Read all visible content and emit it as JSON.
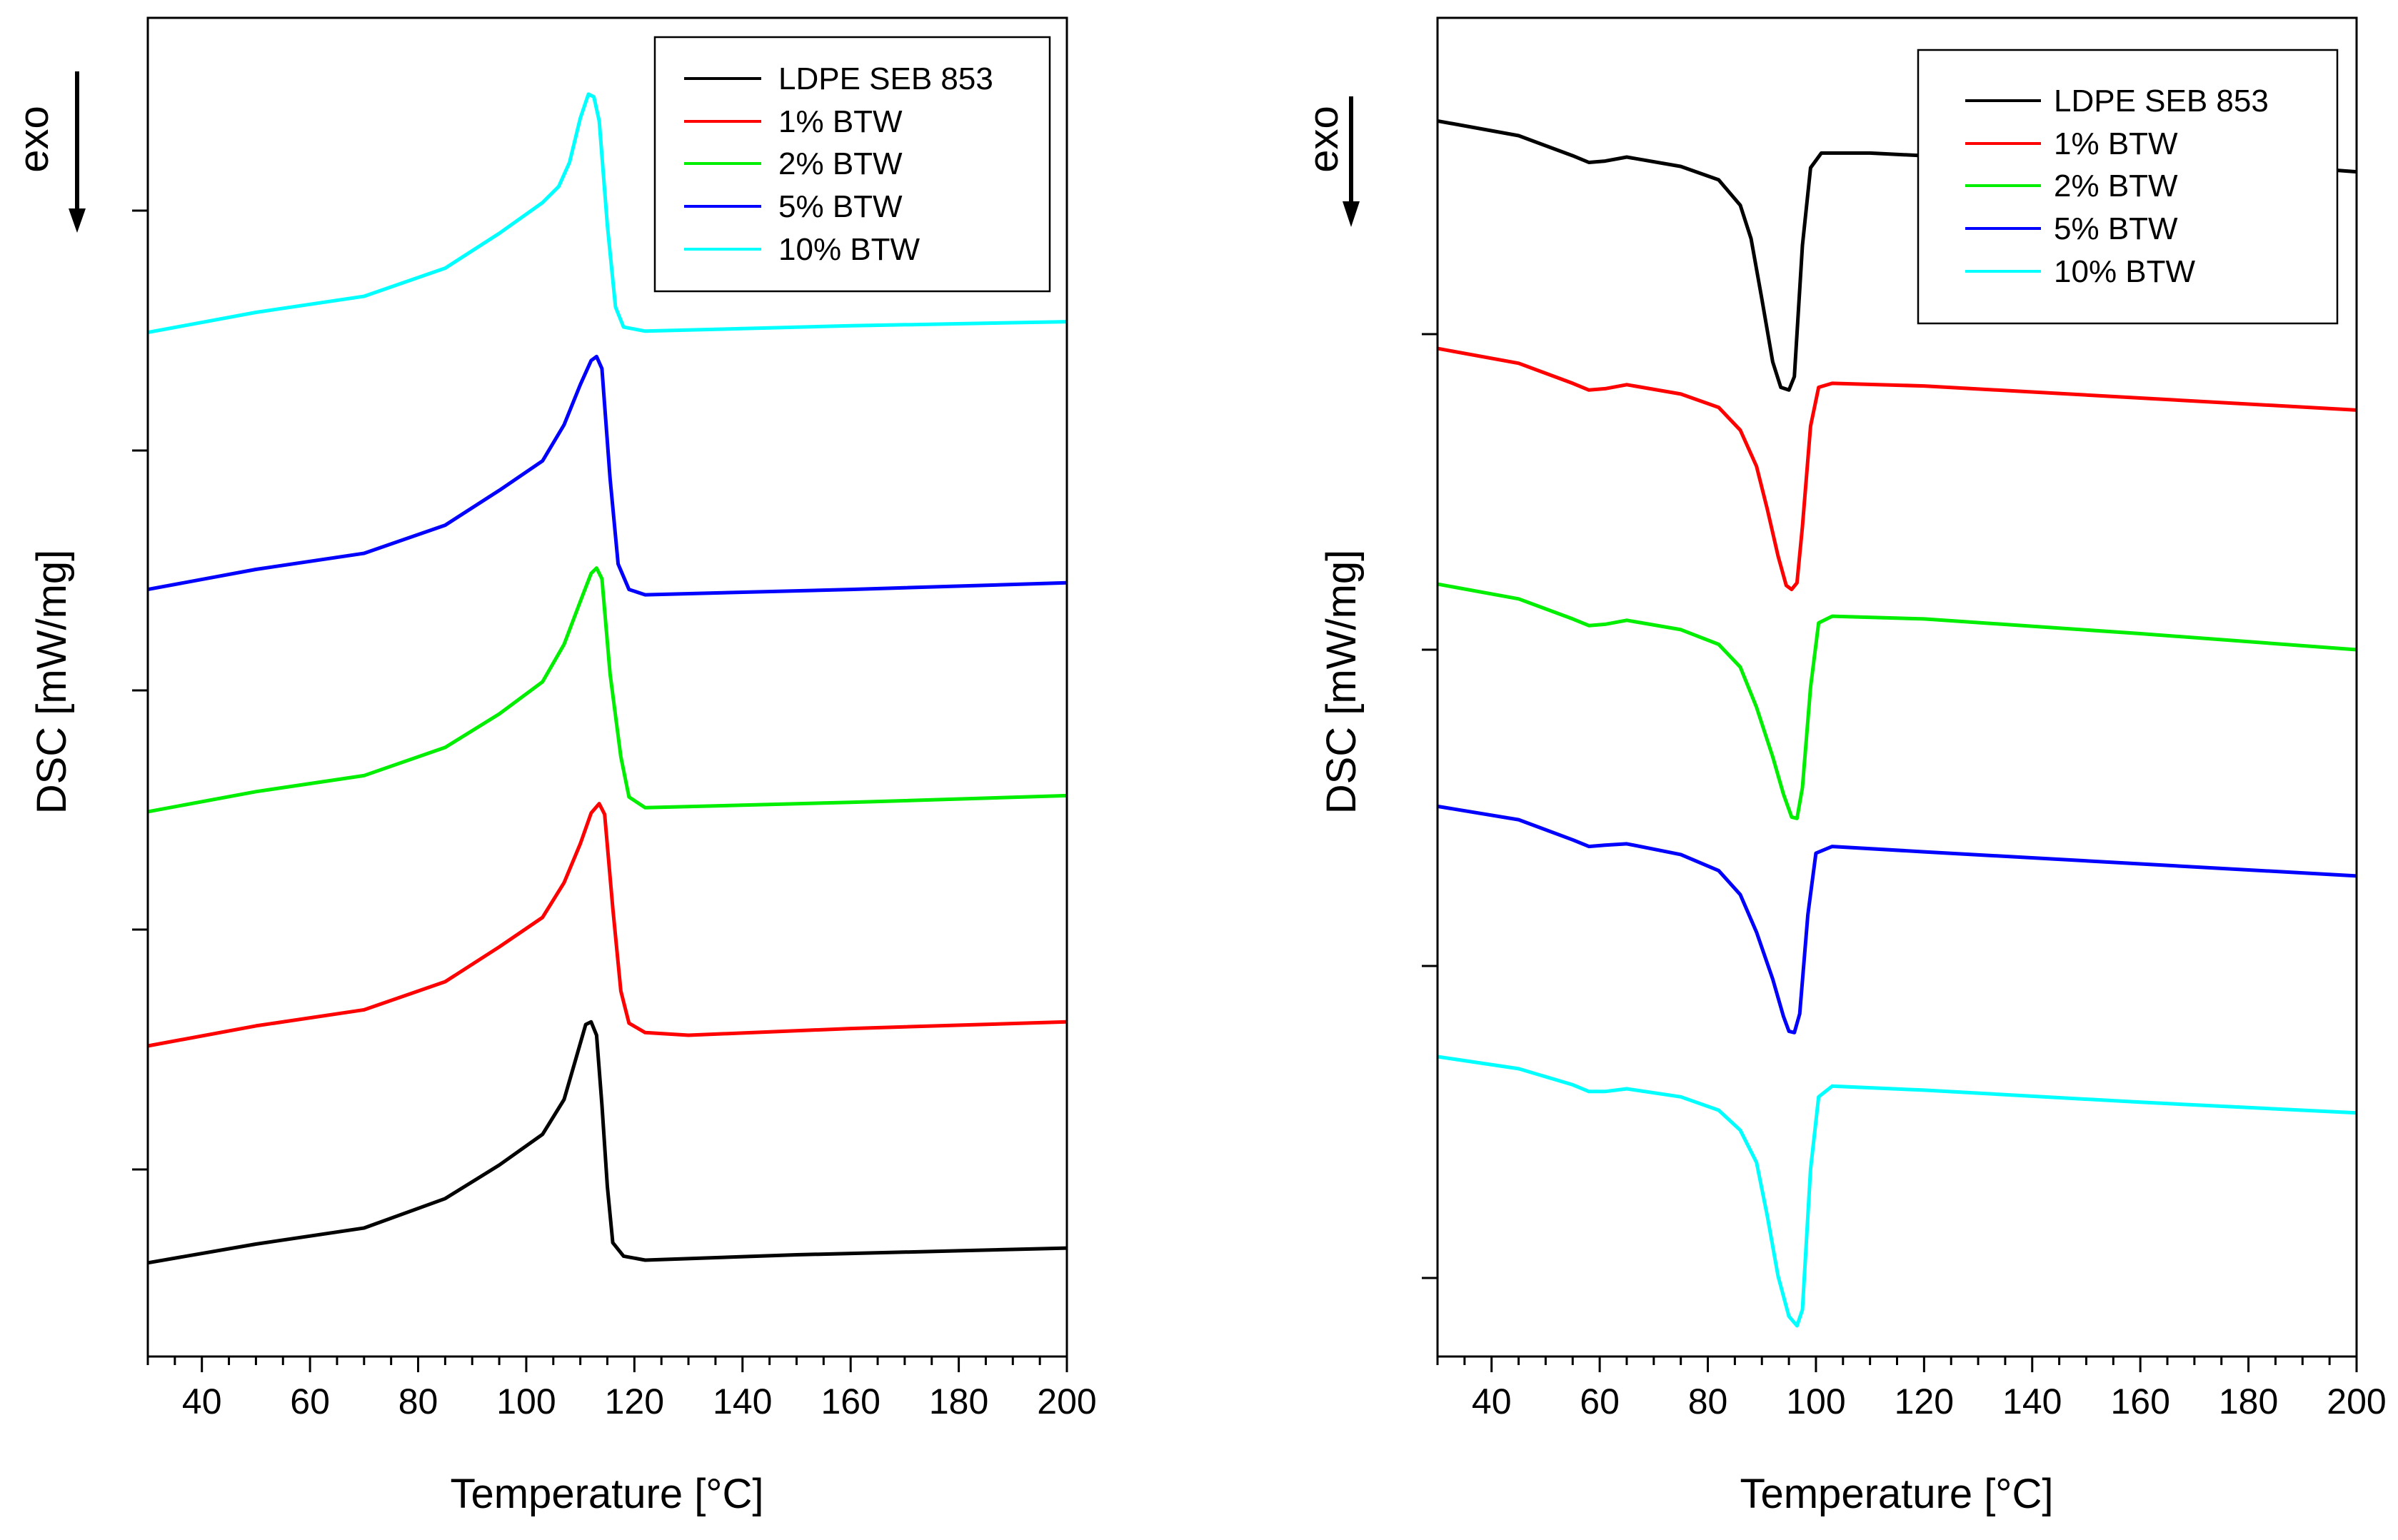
{
  "chart_data": [
    {
      "type": "line",
      "panel": "left (cooling)",
      "xlabel": "Temperature [°C]",
      "ylabel": "DSC [mW/mg]",
      "y_direction_label": "exo",
      "xlim": [
        30,
        200
      ],
      "x_tick_labels": [
        "40",
        "60",
        "80",
        "100",
        "120",
        "140",
        "160",
        "180",
        "200"
      ],
      "yticks_count": 5,
      "legend_position": "top-right",
      "ylim": [
        0,
        100
      ],
      "legend": [
        "LDPE SEB 853",
        "1% BTW",
        "2% BTW",
        "5% BTW",
        "10% BTW"
      ],
      "series": [
        {
          "name": "LDPE SEB 853",
          "color": "#000000",
          "points": [
            [
              30,
              7
            ],
            [
              50,
              8.4
            ],
            [
              70,
              9.6
            ],
            [
              85,
              11.8
            ],
            [
              95,
              14.3
            ],
            [
              103,
              16.6
            ],
            [
              107,
              19.2
            ],
            [
              109,
              22
            ],
            [
              111,
              24.8
            ],
            [
              112,
              25
            ],
            [
              113,
              24
            ],
            [
              114,
              18.8
            ],
            [
              115,
              12.7
            ],
            [
              116,
              8.5
            ],
            [
              118,
              7.5
            ],
            [
              122,
              7.2
            ],
            [
              150,
              7.6
            ],
            [
              180,
              7.9
            ],
            [
              200,
              8.1
            ]
          ]
        },
        {
          "name": "1% BTW",
          "color": "#ff0000",
          "points": [
            [
              30,
              23.2
            ],
            [
              50,
              24.7
            ],
            [
              70,
              25.9
            ],
            [
              85,
              28
            ],
            [
              95,
              30.6
            ],
            [
              103,
              32.8
            ],
            [
              107,
              35.4
            ],
            [
              110,
              38.3
            ],
            [
              112,
              40.6
            ],
            [
              113.5,
              41.3
            ],
            [
              114.5,
              40.5
            ],
            [
              116,
              33.5
            ],
            [
              117.5,
              27.3
            ],
            [
              119,
              24.9
            ],
            [
              122,
              24.2
            ],
            [
              130,
              24
            ],
            [
              160,
              24.5
            ],
            [
              200,
              25
            ]
          ]
        },
        {
          "name": "2% BTW",
          "color": "#00ee00",
          "points": [
            [
              30,
              40.7
            ],
            [
              50,
              42.2
            ],
            [
              70,
              43.4
            ],
            [
              85,
              45.5
            ],
            [
              95,
              48
            ],
            [
              103,
              50.4
            ],
            [
              107,
              53.2
            ],
            [
              110,
              56.4
            ],
            [
              112,
              58.5
            ],
            [
              113,
              58.9
            ],
            [
              114,
              58.1
            ],
            [
              115.5,
              51
            ],
            [
              117.5,
              44.8
            ],
            [
              119,
              41.8
            ],
            [
              122,
              41
            ],
            [
              160,
              41.4
            ],
            [
              200,
              41.9
            ]
          ]
        },
        {
          "name": "5% BTW",
          "color": "#0000ff",
          "points": [
            [
              30,
              57.3
            ],
            [
              50,
              58.8
            ],
            [
              70,
              60
            ],
            [
              85,
              62.1
            ],
            [
              95,
              64.7
            ],
            [
              103,
              66.9
            ],
            [
              107,
              69.6
            ],
            [
              110,
              72.6
            ],
            [
              112,
              74.4
            ],
            [
              113,
              74.7
            ],
            [
              114,
              73.8
            ],
            [
              115.5,
              65.6
            ],
            [
              117,
              59.2
            ],
            [
              119,
              57.3
            ],
            [
              122,
              56.9
            ],
            [
              160,
              57.3
            ],
            [
              200,
              57.8
            ]
          ]
        },
        {
          "name": "10% BTW",
          "color": "#00ffff",
          "points": [
            [
              30,
              76.5
            ],
            [
              50,
              78
            ],
            [
              70,
              79.2
            ],
            [
              85,
              81.3
            ],
            [
              95,
              83.9
            ],
            [
              103,
              86.2
            ],
            [
              106,
              87.4
            ],
            [
              108,
              89.2
            ],
            [
              110,
              92.5
            ],
            [
              111.5,
              94.3
            ],
            [
              112.5,
              94.1
            ],
            [
              113.5,
              92.3
            ],
            [
              115,
              84.5
            ],
            [
              116.5,
              78.4
            ],
            [
              118,
              76.9
            ],
            [
              122,
              76.6
            ],
            [
              160,
              77
            ],
            [
              200,
              77.3
            ]
          ]
        }
      ]
    },
    {
      "type": "line",
      "panel": "right (heating)",
      "xlabel": "Temperature [°C]",
      "ylabel": "DSC [mW/mg]",
      "y_direction_label": "exo",
      "xlim": [
        30,
        200
      ],
      "x_tick_labels": [
        "40",
        "60",
        "80",
        "100",
        "120",
        "140",
        "160",
        "180",
        "200"
      ],
      "yticks_count": 5,
      "legend_position": "top-right",
      "ylim": [
        0,
        100
      ],
      "legend": [
        "LDPE SEB 853",
        "1% BTW",
        "2% BTW",
        "5% BTW",
        "10% BTW"
      ],
      "series": [
        {
          "name": "LDPE SEB 853",
          "color": "#000000",
          "points": [
            [
              30,
              92.3
            ],
            [
              45,
              91.2
            ],
            [
              55,
              89.7
            ],
            [
              58,
              89.2
            ],
            [
              61,
              89.3
            ],
            [
              65,
              89.6
            ],
            [
              75,
              88.9
            ],
            [
              82,
              87.9
            ],
            [
              86,
              86
            ],
            [
              88,
              83.5
            ],
            [
              90,
              79
            ],
            [
              92,
              74.3
            ],
            [
              93.5,
              72.4
            ],
            [
              95,
              72.2
            ],
            [
              96,
              73.2
            ],
            [
              97.5,
              83
            ],
            [
              99,
              88.8
            ],
            [
              101,
              89.9
            ],
            [
              110,
              89.9
            ],
            [
              130,
              89.5
            ],
            [
              160,
              89.1
            ],
            [
              190,
              88.8
            ],
            [
              200,
              88.5
            ]
          ]
        },
        {
          "name": "1% BTW",
          "color": "#ff0000",
          "points": [
            [
              30,
              75.3
            ],
            [
              45,
              74.2
            ],
            [
              55,
              72.7
            ],
            [
              58,
              72.2
            ],
            [
              61,
              72.3
            ],
            [
              65,
              72.6
            ],
            [
              75,
              71.9
            ],
            [
              82,
              70.9
            ],
            [
              86,
              69.2
            ],
            [
              89,
              66.5
            ],
            [
              91,
              63.3
            ],
            [
              93,
              59.8
            ],
            [
              94.5,
              57.6
            ],
            [
              95.5,
              57.3
            ],
            [
              96.5,
              57.8
            ],
            [
              97.5,
              62
            ],
            [
              99,
              69.5
            ],
            [
              100.5,
              72.4
            ],
            [
              103,
              72.7
            ],
            [
              120,
              72.5
            ],
            [
              160,
              71.6
            ],
            [
              200,
              70.7
            ]
          ]
        },
        {
          "name": "2% BTW",
          "color": "#00ee00",
          "points": [
            [
              30,
              57.7
            ],
            [
              45,
              56.6
            ],
            [
              55,
              55.1
            ],
            [
              58,
              54.6
            ],
            [
              61,
              54.7
            ],
            [
              65,
              55
            ],
            [
              75,
              54.3
            ],
            [
              82,
              53.2
            ],
            [
              86,
              51.5
            ],
            [
              89,
              48.5
            ],
            [
              92,
              44.8
            ],
            [
              94,
              42
            ],
            [
              95.5,
              40.3
            ],
            [
              96.5,
              40.2
            ],
            [
              97.5,
              42.5
            ],
            [
              99,
              50
            ],
            [
              100.5,
              54.8
            ],
            [
              103,
              55.3
            ],
            [
              120,
              55.1
            ],
            [
              160,
              54
            ],
            [
              200,
              52.8
            ]
          ]
        },
        {
          "name": "5% BTW",
          "color": "#0000ff",
          "points": [
            [
              30,
              41.1
            ],
            [
              45,
              40.1
            ],
            [
              55,
              38.6
            ],
            [
              58,
              38.1
            ],
            [
              61,
              38.2
            ],
            [
              65,
              38.3
            ],
            [
              75,
              37.5
            ],
            [
              82,
              36.3
            ],
            [
              86,
              34.5
            ],
            [
              89,
              31.7
            ],
            [
              92,
              28.2
            ],
            [
              94,
              25.4
            ],
            [
              95,
              24.3
            ],
            [
              96,
              24.2
            ],
            [
              97,
              25.6
            ],
            [
              98.5,
              33
            ],
            [
              100,
              37.6
            ],
            [
              103,
              38.1
            ],
            [
              120,
              37.7
            ],
            [
              160,
              36.8
            ],
            [
              200,
              35.9
            ]
          ]
        },
        {
          "name": "10% BTW",
          "color": "#00ffff",
          "points": [
            [
              30,
              22.4
            ],
            [
              45,
              21.5
            ],
            [
              55,
              20.3
            ],
            [
              58,
              19.8
            ],
            [
              61,
              19.8
            ],
            [
              65,
              20
            ],
            [
              75,
              19.4
            ],
            [
              82,
              18.4
            ],
            [
              86,
              16.9
            ],
            [
              89,
              14.5
            ],
            [
              91,
              10.5
            ],
            [
              93,
              6
            ],
            [
              95,
              3
            ],
            [
              96.5,
              2.3
            ],
            [
              97.5,
              3.5
            ],
            [
              99,
              14
            ],
            [
              100.5,
              19.4
            ],
            [
              103,
              20.2
            ],
            [
              120,
              19.9
            ],
            [
              160,
              19
            ],
            [
              200,
              18.2
            ]
          ]
        }
      ]
    }
  ]
}
